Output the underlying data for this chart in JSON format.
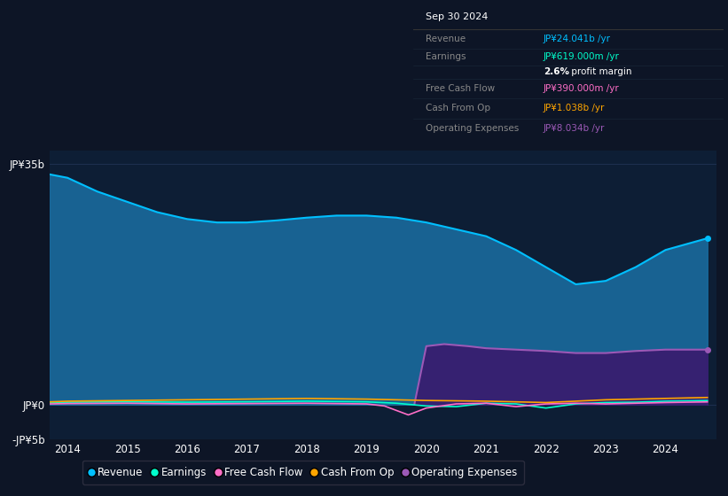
{
  "bg_color": "#0d1526",
  "plot_bg_color": "#0d1e35",
  "grid_color": "#1e3050",
  "info_rows": [
    {
      "label": "Revenue",
      "value": "JP¥24.041b /yr",
      "vcolor": "#00bfff"
    },
    {
      "label": "Earnings",
      "value": "JP¥619.000m /yr",
      "vcolor": "#00ffcc"
    },
    {
      "label": "",
      "value": "2.6% profit margin",
      "vcolor": "#ffffff"
    },
    {
      "label": "Free Cash Flow",
      "value": "JP¥390.000m /yr",
      "vcolor": "#ff6ec7"
    },
    {
      "label": "Cash From Op",
      "value": "JP¥1.038b /yr",
      "vcolor": "#ffa500"
    },
    {
      "label": "Operating Expenses",
      "value": "JP¥8.034b /yr",
      "vcolor": "#9b59b6"
    }
  ],
  "ylim": [
    -5000000000.0,
    37000000000.0
  ],
  "ytick_vals": [
    -5000000000.0,
    0,
    35000000000.0
  ],
  "ytick_labels": [
    "-JP¥5b",
    "JP¥0",
    "JP¥35b"
  ],
  "xtick_vals": [
    2014,
    2015,
    2016,
    2017,
    2018,
    2019,
    2020,
    2021,
    2022,
    2023,
    2024
  ],
  "legend": [
    {
      "label": "Revenue",
      "color": "#00bfff",
      "type": "circle"
    },
    {
      "label": "Earnings",
      "color": "#00ffcc",
      "type": "circle"
    },
    {
      "label": "Free Cash Flow",
      "color": "#ff6ec7",
      "type": "circle"
    },
    {
      "label": "Cash From Op",
      "color": "#ffa500",
      "type": "circle"
    },
    {
      "label": "Operating Expenses",
      "color": "#9b59b6",
      "type": "circle"
    }
  ],
  "revenue_years": [
    2013.7,
    2014,
    2014.5,
    2015,
    2015.5,
    2016,
    2016.5,
    2017,
    2017.5,
    2018,
    2018.5,
    2019,
    2019.5,
    2020,
    2020.5,
    2021,
    2021.5,
    2022,
    2022.5,
    2023,
    2023.5,
    2024,
    2024.7
  ],
  "revenue_vals": [
    33500000000.0,
    33000000000.0,
    31000000000.0,
    29500000000.0,
    28000000000.0,
    27000000000.0,
    26500000000.0,
    26500000000.0,
    26800000000.0,
    27200000000.0,
    27500000000.0,
    27500000000.0,
    27200000000.0,
    26500000000.0,
    25500000000.0,
    24500000000.0,
    22500000000.0,
    20000000000.0,
    17500000000.0,
    18000000000.0,
    20000000000.0,
    22500000000.0,
    24200000000.0
  ],
  "opex_years": [
    2019.8,
    2020,
    2020.3,
    2020.7,
    2021,
    2021.5,
    2022,
    2022.5,
    2023,
    2023.5,
    2024,
    2024.7
  ],
  "opex_vals": [
    0,
    8500000000.0,
    8800000000.0,
    8500000000.0,
    8200000000.0,
    8000000000.0,
    7800000000.0,
    7500000000.0,
    7500000000.0,
    7800000000.0,
    8000000000.0,
    8000000000.0
  ],
  "earnings_years": [
    2013.7,
    2014,
    2015,
    2016,
    2017,
    2018,
    2019,
    2019.5,
    2020,
    2020.5,
    2021,
    2021.5,
    2022,
    2022.5,
    2023,
    2023.5,
    2024,
    2024.7
  ],
  "earnings_vals": [
    300000000.0,
    350000000.0,
    400000000.0,
    350000000.0,
    400000000.0,
    500000000.0,
    400000000.0,
    200000000.0,
    -200000000.0,
    -300000000.0,
    200000000.0,
    100000000.0,
    -500000000.0,
    100000000.0,
    300000000.0,
    350000000.0,
    500000000.0,
    600000000.0
  ],
  "fcf_years": [
    2013.7,
    2014,
    2015,
    2016,
    2017,
    2018,
    2019,
    2019.3,
    2019.7,
    2020,
    2020.5,
    2021,
    2021.5,
    2022,
    2022.5,
    2023,
    2023.5,
    2024,
    2024.7
  ],
  "fcf_vals": [
    100000000.0,
    150000000.0,
    200000000.0,
    100000000.0,
    150000000.0,
    200000000.0,
    100000000.0,
    -200000000.0,
    -1500000000.0,
    -500000000.0,
    100000000.0,
    200000000.0,
    -300000000.0,
    100000000.0,
    200000000.0,
    100000000.0,
    200000000.0,
    300000000.0,
    390000000.0
  ],
  "cfop_years": [
    2013.7,
    2014,
    2015,
    2016,
    2017,
    2018,
    2019,
    2020,
    2021,
    2022,
    2023,
    2024,
    2024.7
  ],
  "cfop_vals": [
    400000000.0,
    500000000.0,
    600000000.0,
    700000000.0,
    800000000.0,
    900000000.0,
    800000000.0,
    600000000.0,
    500000000.0,
    300000000.0,
    700000000.0,
    900000000.0,
    1038000000.0
  ]
}
